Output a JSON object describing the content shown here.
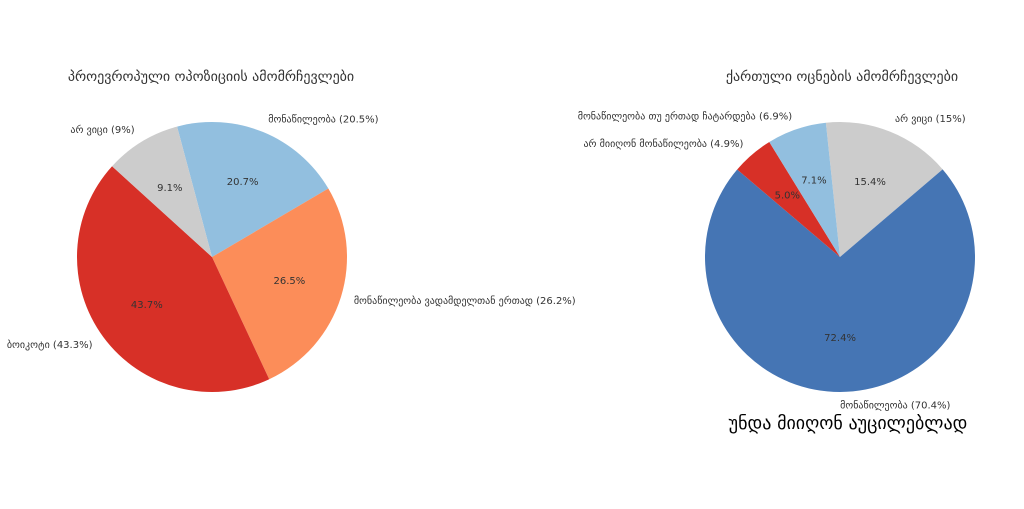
{
  "chart_data": [
    {
      "type": "pie",
      "title": "პროევროპული ოპოზიციის ამომრჩევლები",
      "categories": [
        "მონაწილეობა (20.5%)",
        "მონაწილეობა ვადამდელთან ერთად (26.2%)",
        "ბოიკოტი (43.3%)",
        "არ ვიცი (9%)"
      ],
      "values": [
        20.7,
        26.5,
        43.7,
        9.1
      ],
      "value_labels": [
        "20.7%",
        "26.5%",
        "43.7%",
        "9.1%"
      ],
      "colors": [
        "#92bfdf",
        "#fc8d59",
        "#d73027",
        "#cccccc"
      ]
    },
    {
      "type": "pie",
      "title": "ქართული ოცნების ამომრჩევლები",
      "categories": [
        "არ ვიცი (15%)",
        "მონაწილეობა (70.4%)",
        "არ მიიღონ მონაწილეობა (4.9%)",
        "მონაწილეობა თუ ერთად ჩატარდება (6.9%)"
      ],
      "values": [
        15.4,
        72.4,
        5.0,
        7.1
      ],
      "value_labels": [
        "15.4%",
        "72.4%",
        "5.0%",
        "7.1%"
      ],
      "colors": [
        "#cccccc",
        "#4575b4",
        "#d73027",
        "#92bfdf"
      ],
      "annotation": "უნდა მიიღონ აუცილებლად"
    }
  ]
}
